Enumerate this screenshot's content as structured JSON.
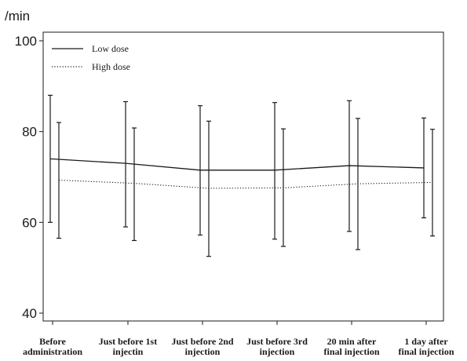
{
  "chart_data": {
    "type": "line",
    "unit_label": "/min",
    "categories": [
      [
        "Before",
        "administration"
      ],
      [
        "Just before 1st",
        "injectin"
      ],
      [
        "Just before 2nd",
        "injection"
      ],
      [
        "Just before 3rd",
        "injection"
      ],
      [
        "20 min after",
        "final injection"
      ],
      [
        "1 day after",
        "final injection"
      ]
    ],
    "yticks": [
      "40",
      "60",
      "80",
      "100"
    ],
    "ylim": [
      40,
      100
    ],
    "series": [
      {
        "name": "Low dose",
        "style": "solid",
        "color": "#1a1a1a",
        "values": [
          74,
          73,
          71.5,
          71.5,
          72.5,
          72
        ],
        "err_low": [
          60,
          59,
          57.2,
          56.3,
          58,
          61
        ],
        "err_high": [
          88,
          86.6,
          85.7,
          86.4,
          86.8,
          83
        ]
      },
      {
        "name": "High dose",
        "style": "dotted",
        "color": "#1a1a1a",
        "values": [
          69.3,
          68.6,
          67.5,
          67.6,
          68.5,
          68.8
        ],
        "err_low": [
          56.5,
          56,
          52.5,
          54.7,
          54,
          57
        ],
        "err_high": [
          82,
          80.8,
          82.3,
          80.6,
          82.9,
          80.5
        ]
      }
    ],
    "legend_position": "top-left",
    "grid": false
  }
}
